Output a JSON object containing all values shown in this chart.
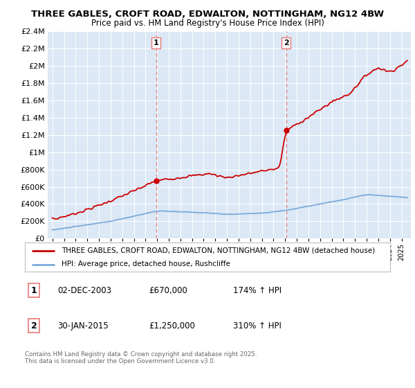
{
  "title": "THREE GABLES, CROFT ROAD, EDWALTON, NOTTINGHAM, NG12 4BW",
  "subtitle": "Price paid vs. HM Land Registry's House Price Index (HPI)",
  "legend_line1": "THREE GABLES, CROFT ROAD, EDWALTON, NOTTINGHAM, NG12 4BW (detached house)",
  "legend_line2": "HPI: Average price, detached house, Rushcliffe",
  "sale1_date": "02-DEC-2003",
  "sale1_price": 670000,
  "sale1_hpi": "174% ↑ HPI",
  "sale2_date": "30-JAN-2015",
  "sale2_price": 1250000,
  "sale2_hpi": "310% ↑ HPI",
  "footer": "Contains HM Land Registry data © Crown copyright and database right 2025.\nThis data is licensed under the Open Government Licence v3.0.",
  "red_color": "#cc0000",
  "blue_color": "#7aabdb",
  "vline_color": "#e87878",
  "bg_color": "#dce8f5",
  "ylim": [
    0,
    2400000
  ],
  "xlim_start": 1994.6,
  "xlim_end": 2025.8
}
